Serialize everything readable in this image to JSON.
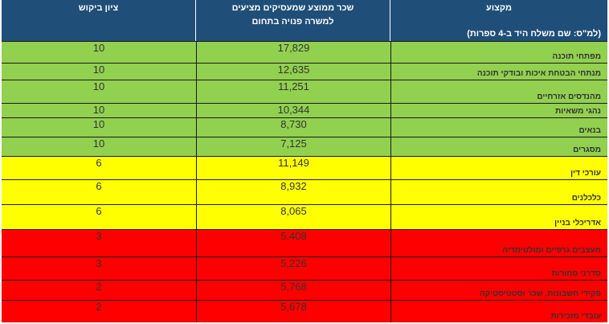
{
  "header": {
    "occupation_title": "מקצוע",
    "occupation_note": "(למ\"ס: שם משלח היד ב-4 ספרות)",
    "salary_line1": "שכר ממוצע שמעסיקים מציעים",
    "salary_line2": "למשרה פנויה בתחום",
    "demand_title": "ציון ביקוש"
  },
  "colors": {
    "header": "#1f4e79",
    "green": "#92d050",
    "yellow": "#ffff00",
    "red": "#ff0000"
  },
  "rows": [
    {
      "occupation": "מפתחי תוכנה",
      "salary": "17,829",
      "demand": "10",
      "color": "green"
    },
    {
      "occupation": "מנתחי הבטחת איכות ובודקי תוכנה",
      "salary": "12,635",
      "demand": "10",
      "color": "green"
    },
    {
      "occupation": "מהנדסים אזרחיים",
      "salary": "11,251",
      "demand": "10",
      "color": "green"
    },
    {
      "occupation": "נהגי משאיות",
      "salary": "10,344",
      "demand": "10",
      "color": "green"
    },
    {
      "occupation": "בנאים",
      "salary": "8,730",
      "demand": "10",
      "color": "green"
    },
    {
      "occupation": "מסגרים",
      "salary": "7,125",
      "demand": "10",
      "color": "green"
    },
    {
      "occupation": "עורכי דין",
      "salary": "11,149",
      "demand": "6",
      "color": "yellow"
    },
    {
      "occupation": "כלכלנים",
      "salary": "8,932",
      "demand": "6",
      "color": "yellow"
    },
    {
      "occupation": "אדריכלי בניין",
      "salary": "8,065",
      "demand": "6",
      "color": "yellow"
    },
    {
      "occupation": "מעצבים גרפיים ומולטימדיה",
      "salary": "5,408",
      "demand": "3",
      "color": "red"
    },
    {
      "occupation": "סדרני סחורות",
      "salary": "5,226",
      "demand": "3",
      "color": "red"
    },
    {
      "occupation": "פקידי חשבונות, שכר וסטטיסטיקה",
      "salary": "5,768",
      "demand": "2",
      "color": "red"
    },
    {
      "occupation": "עובדי מזכירות",
      "salary": "5,678",
      "demand": "2",
      "color": "red"
    }
  ]
}
